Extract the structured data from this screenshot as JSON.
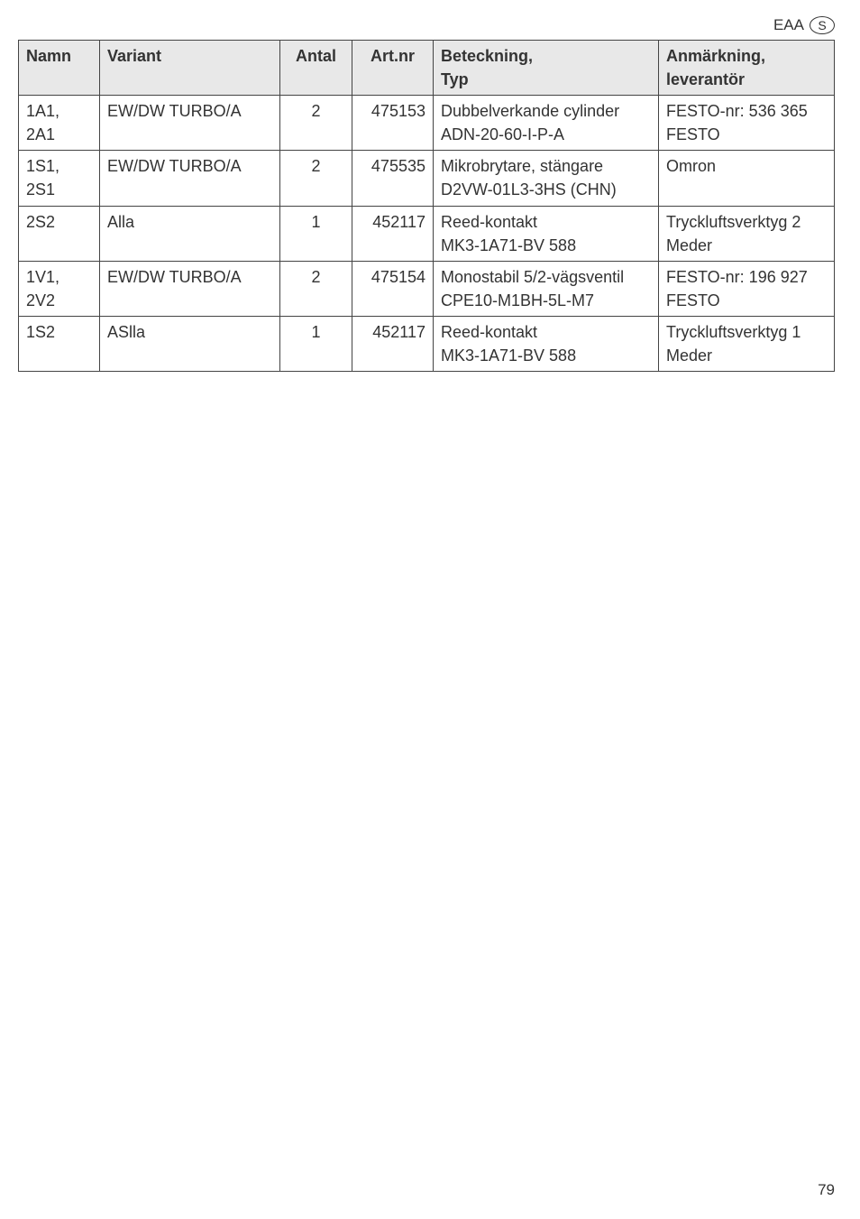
{
  "header": {
    "label": "EAA",
    "lang": "S"
  },
  "table": {
    "columns": {
      "namn": "Namn",
      "variant": "Variant",
      "antal": "Antal",
      "artnr": "Art.nr",
      "beteckning_line1": "Beteckning,",
      "beteckning_line2": "Typ",
      "anmarkning_line1": "Anmärkning,",
      "anmarkning_line2": "leverantör"
    },
    "rows": [
      {
        "namn_line1": "1A1,",
        "namn_line2": "2A1",
        "variant": "EW/DW TURBO/A",
        "antal": "2",
        "artnr": "475153",
        "bet_line1": "Dubbelverkande cylinder",
        "bet_line2": "ADN-20-60-I-P-A",
        "anm_line1": "FESTO-nr:  536 365",
        "anm_line2": "FESTO"
      },
      {
        "namn_line1": "1S1,",
        "namn_line2": "2S1",
        "variant": "EW/DW TURBO/A",
        "antal": "2",
        "artnr": "475535",
        "bet_line1": "Mikrobrytare, stängare",
        "bet_line2": "D2VW-01L3-3HS (CHN)",
        "anm_line1": "Omron",
        "anm_line2": ""
      },
      {
        "namn_line1": "2S2",
        "namn_line2": "",
        "variant": "Alla",
        "antal": "1",
        "artnr": "452117",
        "bet_line1": "Reed-kontakt",
        "bet_line2": "MK3-1A71-BV 588",
        "anm_line1": "Tryckluftsverktyg 2",
        "anm_line2": "Meder"
      },
      {
        "namn_line1": "1V1,",
        "namn_line2": "2V2",
        "variant": "EW/DW TURBO/A",
        "antal": "2",
        "artnr": "475154",
        "bet_line1": "Monostabil 5/2-vägsventil",
        "bet_line2": "CPE10-M1BH-5L-M7",
        "anm_line1": "FESTO-nr: 196 927",
        "anm_line2": "FESTO"
      },
      {
        "namn_line1": "1S2",
        "namn_line2": "",
        "variant": "ASlla",
        "antal": "1",
        "artnr": "452117",
        "bet_line1": "Reed-kontakt",
        "bet_line2": "MK3-1A71-BV 588",
        "anm_line1": "Tryckluftsverktyg 1",
        "anm_line2": "Meder"
      }
    ]
  },
  "page_number": "79"
}
